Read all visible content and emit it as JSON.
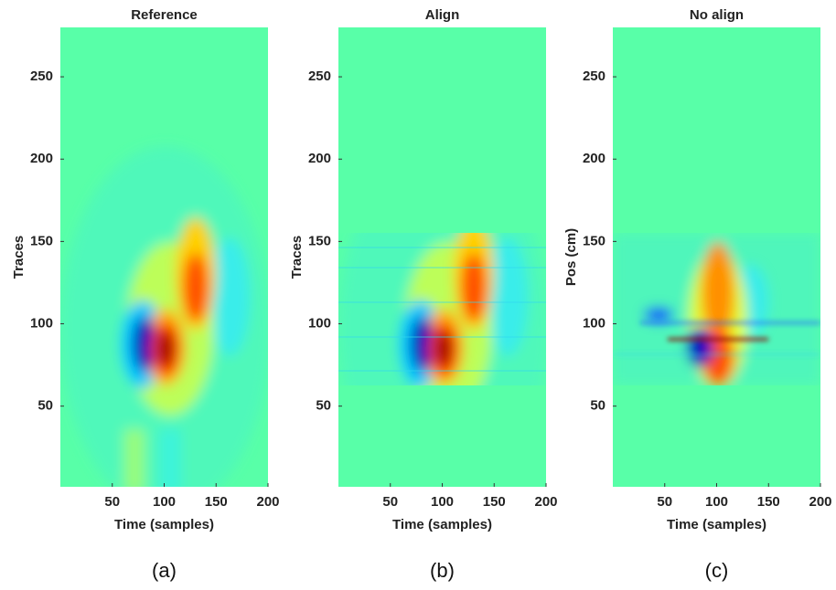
{
  "chart_data": [
    {
      "type": "heatmap",
      "title": "Reference",
      "xlabel": "Time (samples)",
      "ylabel": "Traces",
      "caption": "(a)",
      "xlim": [
        0,
        200
      ],
      "ylim": [
        1,
        280
      ],
      "xticks": [
        50,
        100,
        150,
        200
      ],
      "yticks": [
        50,
        100,
        150,
        200,
        250
      ]
    },
    {
      "type": "heatmap",
      "title": "Align",
      "xlabel": "Time (samples)",
      "ylabel": "Traces",
      "caption": "(b)",
      "xlim": [
        0,
        200
      ],
      "ylim": [
        1,
        280
      ],
      "xticks": [
        50,
        100,
        150,
        200
      ],
      "yticks": [
        50,
        100,
        150,
        200,
        250
      ]
    },
    {
      "type": "heatmap",
      "title": "No align",
      "xlabel": "Time (samples)",
      "ylabel": "Pos (cm)",
      "caption": "(c)",
      "xlim": [
        0,
        200
      ],
      "ylim": [
        1,
        280
      ],
      "xticks": [
        50,
        100,
        150,
        200
      ],
      "yticks": [
        50,
        100,
        150,
        200,
        250
      ]
    }
  ]
}
